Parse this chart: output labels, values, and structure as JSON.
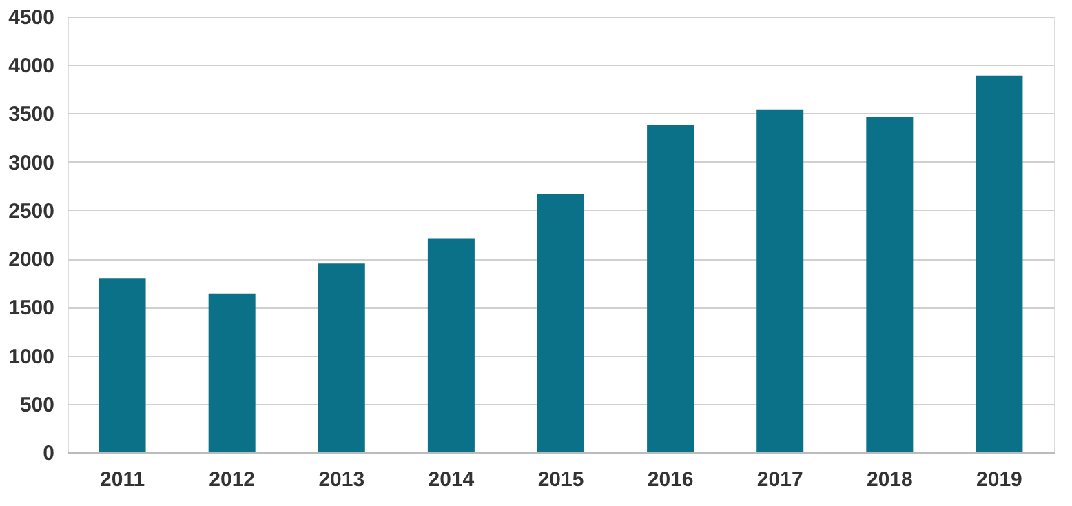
{
  "chart_data": {
    "type": "bar",
    "categories": [
      "2011",
      "2012",
      "2013",
      "2014",
      "2015",
      "2016",
      "2017",
      "2018",
      "2019"
    ],
    "values": [
      1800,
      1640,
      1950,
      2210,
      2670,
      3380,
      3540,
      3460,
      3890
    ],
    "color": "#0b7189",
    "ylim": [
      0,
      4500
    ],
    "yticks": [
      0,
      500,
      1000,
      1500,
      2000,
      2500,
      3000,
      3500,
      4000,
      4500
    ],
    "grid": "y"
  }
}
